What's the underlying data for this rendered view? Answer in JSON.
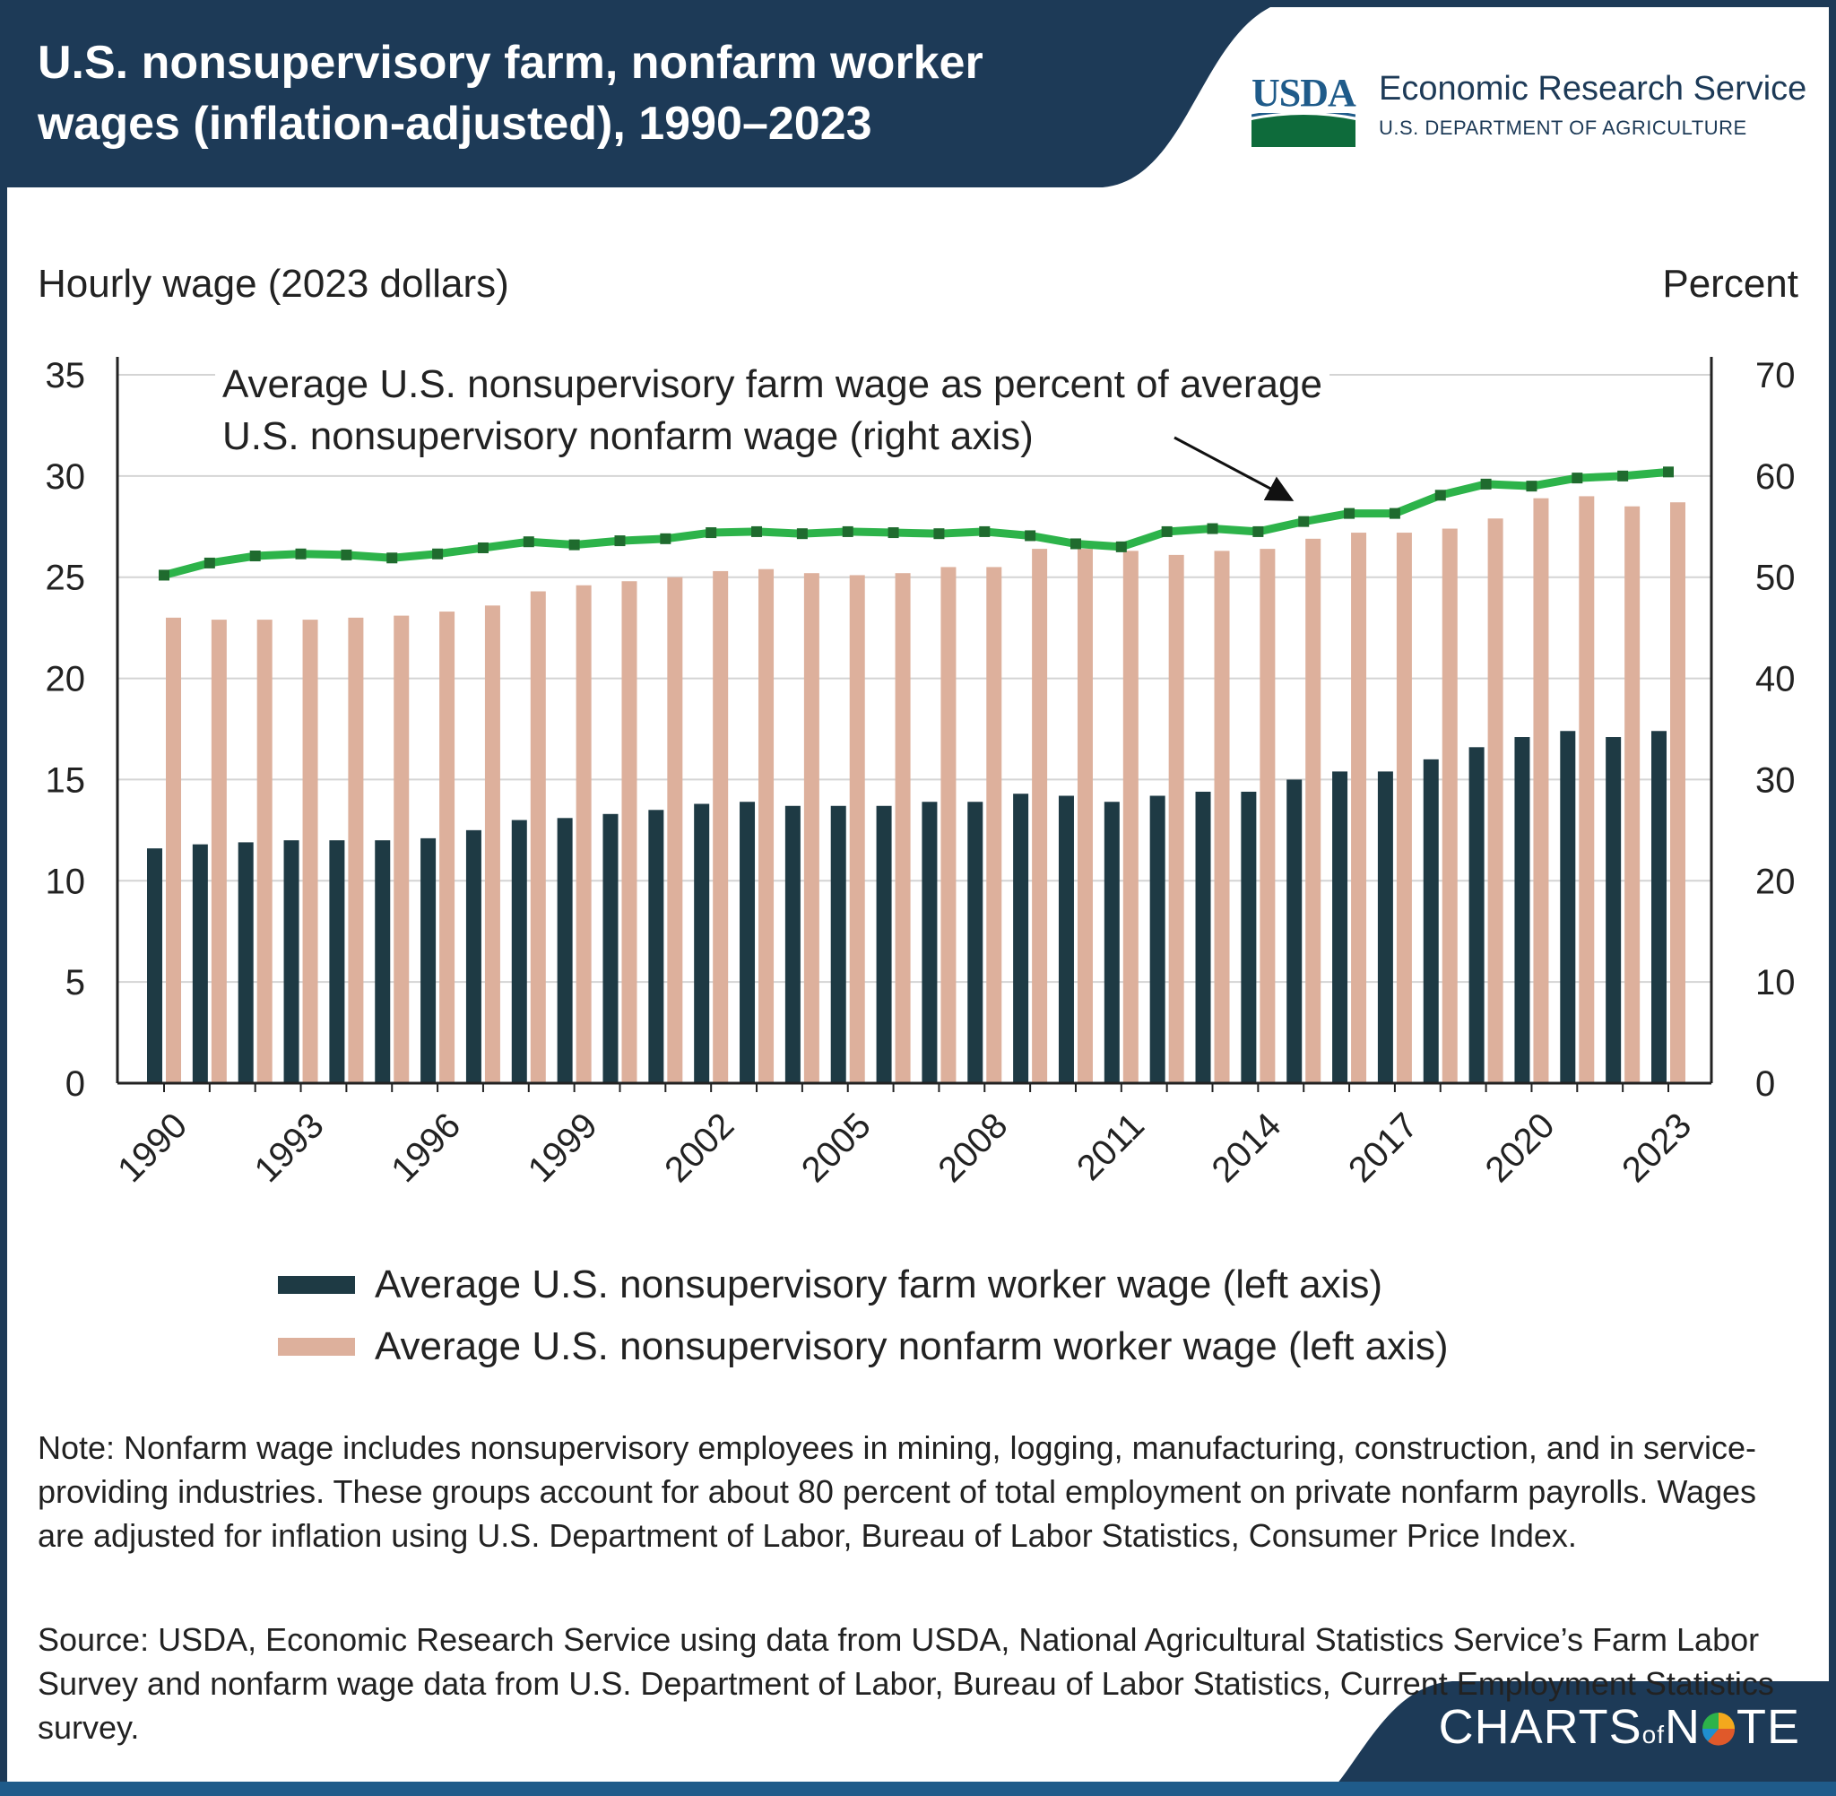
{
  "header": {
    "title": "U.S. nonsupervisory farm, nonfarm worker wages (inflation-adjusted), 1990–2023",
    "logo_text": "USDA",
    "agency": "Economic Research Service",
    "department": "U.S. DEPARTMENT OF AGRICULTURE"
  },
  "chart_data": {
    "type": "bar+line",
    "title": "U.S. nonsupervisory farm, nonfarm worker wages (inflation-adjusted), 1990–2023",
    "ylabel_left": "Hourly wage (2023 dollars)",
    "ylabel_right": "Percent",
    "ylim_left": [
      0,
      35
    ],
    "ylim_right": [
      0,
      70
    ],
    "yticks_left": [
      "0",
      "5",
      "10",
      "15",
      "20",
      "25",
      "30",
      "35"
    ],
    "yticks_right": [
      "0",
      "10",
      "20",
      "30",
      "40",
      "50",
      "60",
      "70"
    ],
    "grid": true,
    "x": [
      1990,
      1991,
      1992,
      1993,
      1994,
      1995,
      1996,
      1997,
      1998,
      1999,
      2000,
      2001,
      2002,
      2003,
      2004,
      2005,
      2006,
      2007,
      2008,
      2009,
      2010,
      2011,
      2012,
      2013,
      2014,
      2015,
      2016,
      2017,
      2018,
      2019,
      2020,
      2021,
      2022,
      2023
    ],
    "xtick_labels": [
      "1990",
      "1993",
      "1996",
      "1999",
      "2002",
      "2005",
      "2008",
      "2011",
      "2014",
      "2017",
      "2020",
      "2023"
    ],
    "series": [
      {
        "name": "Average U.S. nonsupervisory farm worker wage (left axis)",
        "type": "bar",
        "axis": "left",
        "color": "#1e3a44",
        "values": [
          11.6,
          11.8,
          11.9,
          12.0,
          12.0,
          12.0,
          12.1,
          12.5,
          13.0,
          13.1,
          13.3,
          13.5,
          13.8,
          13.9,
          13.7,
          13.7,
          13.7,
          13.9,
          13.9,
          14.3,
          14.2,
          13.9,
          14.2,
          14.4,
          14.4,
          15.0,
          15.4,
          15.4,
          16.0,
          16.6,
          17.1,
          17.4,
          17.1,
          17.4
        ]
      },
      {
        "name": "Average U.S. nonsupervisory nonfarm worker wage (left axis)",
        "type": "bar",
        "axis": "left",
        "color": "#ddb09c",
        "values": [
          23.0,
          22.9,
          22.9,
          22.9,
          23.0,
          23.1,
          23.3,
          23.6,
          24.3,
          24.6,
          24.8,
          25.0,
          25.3,
          25.4,
          25.2,
          25.1,
          25.2,
          25.5,
          25.5,
          26.4,
          26.4,
          26.3,
          26.1,
          26.3,
          26.4,
          26.9,
          27.2,
          27.2,
          27.4,
          27.9,
          28.9,
          29.0,
          28.5,
          28.7
        ]
      },
      {
        "name": "Average U.S. nonsupervisory farm wage as percent of average U.S. nonsupervisory nonfarm wage (right axis)",
        "type": "line",
        "axis": "right",
        "color": "#2db34a",
        "values": [
          50.2,
          51.4,
          52.1,
          52.3,
          52.2,
          51.9,
          52.3,
          52.9,
          53.5,
          53.2,
          53.6,
          53.8,
          54.4,
          54.5,
          54.3,
          54.5,
          54.4,
          54.3,
          54.5,
          54.1,
          53.3,
          53.0,
          54.5,
          54.8,
          54.5,
          55.5,
          56.3,
          56.3,
          58.1,
          59.2,
          59.0,
          59.8,
          60.0,
          60.4
        ]
      }
    ],
    "annotation": "Average U.S. nonsupervisory farm wage as percent of average U.S. nonsupervisory nonfarm wage (right axis)",
    "legend_placement": "bottom"
  },
  "legend": {
    "farm": "Average U.S. nonsupervisory farm worker wage (left axis)",
    "nonfarm": "Average U.S. nonsupervisory nonfarm worker wage (left axis)"
  },
  "annotation": {
    "line1": "Average U.S. nonsupervisory farm wage as percent of average",
    "line2": "U.S. nonsupervisory nonfarm wage (right axis)"
  },
  "note": "Note: Nonfarm wage includes nonsupervisory employees in mining, logging, manufacturing, construction, and in service-providing industries. These groups account for about 80 percent of total employment on private nonfarm payrolls. Wages are adjusted for inflation using U.S. Department of Labor, Bureau of Labor Statistics, Consumer Price Index.",
  "source": "Source: USDA, Economic Research Service using data from USDA, National Agricultural Statistics Service’s Farm Labor Survey and nonfarm wage data from U.S. Department of Labor, Bureau of Labor Statistics, Current Employment Statistics survey.",
  "footer": {
    "brand_part1": "CHARTS",
    "brand_part2": "of",
    "brand_part3": "N",
    "brand_part4": "TE"
  },
  "colors": {
    "navy": "#1d3a57",
    "farm": "#1e3a44",
    "nonfarm": "#ddb09c",
    "line": "#2db34a",
    "marker": "#1f6b2e"
  }
}
